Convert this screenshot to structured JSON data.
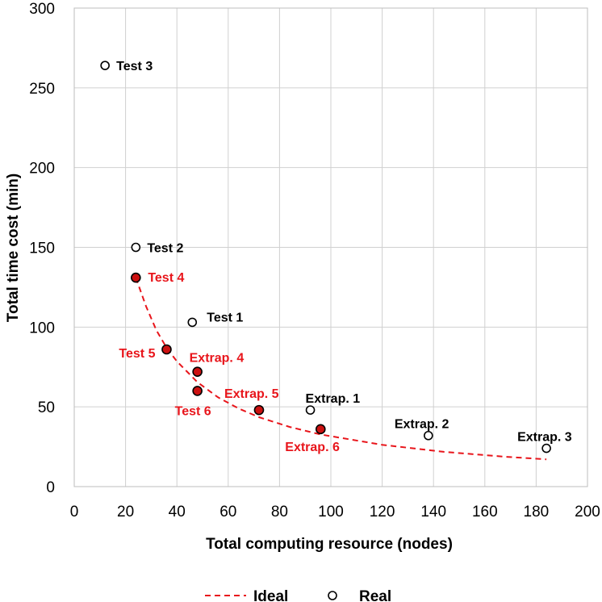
{
  "chart_data": {
    "type": "scatter",
    "xlabel": "Total computing resource (nodes)",
    "ylabel": "Total time cost (min)",
    "xlim": [
      0,
      200
    ],
    "ylim": [
      0,
      300
    ],
    "xticks": [
      0,
      20,
      40,
      60,
      80,
      100,
      120,
      140,
      160,
      180,
      200
    ],
    "yticks": [
      0,
      50,
      100,
      150,
      200,
      250,
      300
    ],
    "grid": true,
    "legend_position": "bottom",
    "colors": {
      "ideal": "#e8151b",
      "real_open": "#000000",
      "real_filled": "#cc1111",
      "label_red": "#e8151b",
      "label_black": "#000000",
      "grid": "#d0d0d0"
    },
    "series": [
      {
        "name": "Ideal",
        "style": "dashed-line",
        "x": [
          24,
          28,
          32,
          36,
          40,
          48,
          56,
          64,
          72,
          84,
          96,
          120,
          144,
          168,
          184
        ],
        "y": [
          131,
          113,
          98,
          87,
          78.5,
          65.5,
          56,
          49,
          43.5,
          37.4,
          32.7,
          26.2,
          21.8,
          18.7,
          17.1
        ]
      },
      {
        "name": "Real",
        "style": "open-marker",
        "points": [
          {
            "x": 12,
            "y": 264,
            "label": "Test 3",
            "label_color": "black"
          },
          {
            "x": 24,
            "y": 150,
            "label": "Test 2",
            "label_color": "black"
          },
          {
            "x": 46,
            "y": 103,
            "label": "Test 1",
            "label_color": "black"
          },
          {
            "x": 92,
            "y": 48,
            "label": "Extrap. 1",
            "label_color": "black"
          },
          {
            "x": 138,
            "y": 32,
            "label": "Extrap. 2",
            "label_color": "black"
          },
          {
            "x": 184,
            "y": 24,
            "label": "Extrap. 3",
            "label_color": "black"
          }
        ]
      },
      {
        "style": "filled-marker",
        "points": [
          {
            "x": 24,
            "y": 131,
            "label": "Test 4",
            "label_color": "red"
          },
          {
            "x": 36,
            "y": 86,
            "label": "Test 5",
            "label_color": "red"
          },
          {
            "x": 48,
            "y": 72,
            "label": "Extrap. 4",
            "label_color": "red"
          },
          {
            "x": 48,
            "y": 60,
            "label": "Test 6",
            "label_color": "red"
          },
          {
            "x": 72,
            "y": 48,
            "label": "Extrap. 5",
            "label_color": "red"
          },
          {
            "x": 96,
            "y": 36,
            "label": "Extrap. 6",
            "label_color": "red"
          }
        ]
      }
    ]
  }
}
